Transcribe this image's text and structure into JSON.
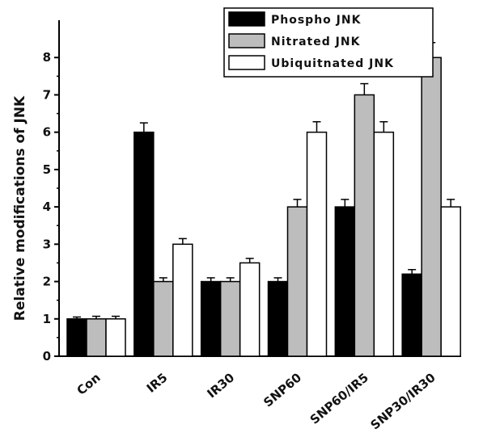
{
  "chart_data": {
    "type": "bar",
    "ylabel": "Relative modifications of JNK",
    "xlabel": "",
    "ylim": [
      0,
      9
    ],
    "yticks": [
      0,
      1,
      2,
      3,
      4,
      5,
      6,
      7,
      8
    ],
    "categories": [
      "Con",
      "IR5",
      "IR30",
      "SNP60",
      "SNP60/IR5",
      "SNP30/IR30"
    ],
    "series": [
      {
        "name": "Phospho JNK",
        "color": "#000000",
        "values": [
          1.0,
          6.0,
          2.0,
          2.0,
          4.0,
          2.2
        ],
        "errors": [
          0.05,
          0.25,
          0.1,
          0.1,
          0.2,
          0.12
        ]
      },
      {
        "name": "Nitrated JNK",
        "color": "#bdbdbd",
        "values": [
          1.0,
          2.0,
          2.0,
          4.0,
          7.0,
          8.0
        ],
        "errors": [
          0.07,
          0.1,
          0.1,
          0.2,
          0.3,
          0.4
        ]
      },
      {
        "name": "Ubiquitnated JNK",
        "color": "#ffffff",
        "values": [
          1.0,
          3.0,
          2.5,
          6.0,
          6.0,
          4.0
        ],
        "errors": [
          0.07,
          0.15,
          0.12,
          0.28,
          0.28,
          0.2
        ]
      }
    ],
    "legend_position": "top-right",
    "grid": false
  }
}
